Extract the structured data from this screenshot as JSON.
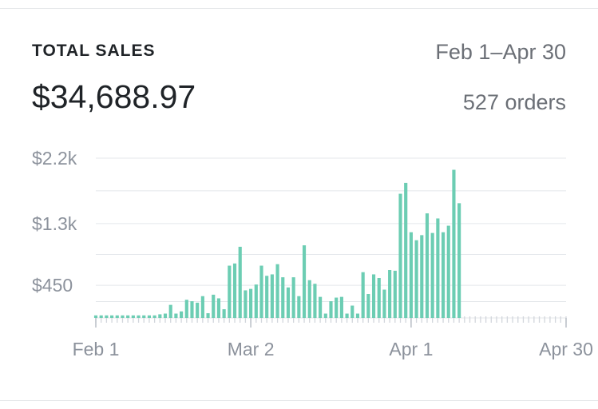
{
  "header": {
    "title": "TOTAL SALES",
    "date_range": "Feb 1–Apr 30",
    "total": "$34,688.97",
    "orders": "527 orders"
  },
  "colors": {
    "bar": "#6ccdb3",
    "placeholder_tick": "#d2d6dc",
    "grid": "#e4e7eb"
  },
  "chart_data": {
    "type": "bar",
    "title": "",
    "xlabel": "",
    "ylabel": "",
    "ylim": [
      0,
      2200
    ],
    "y_ticks": [
      {
        "value": 450,
        "label": "$450"
      },
      {
        "value": 1300,
        "label": "$1.3k"
      },
      {
        "value": 2200,
        "label": "$2.2k"
      }
    ],
    "x_start": "Feb 1",
    "x_end": "Apr 30",
    "x_ticks": [
      {
        "day_index": 0,
        "label": "Feb 1"
      },
      {
        "day_index": 29,
        "label": "Mar 2"
      },
      {
        "day_index": 59,
        "label": "Apr 1"
      },
      {
        "day_index": 88,
        "label": "Apr 30"
      }
    ],
    "grid": true,
    "legend": "none",
    "values": [
      35,
      35,
      35,
      35,
      35,
      35,
      35,
      35,
      35,
      35,
      35,
      35,
      50,
      60,
      180,
      60,
      90,
      250,
      230,
      210,
      300,
      65,
      320,
      270,
      120,
      720,
      750,
      980,
      380,
      400,
      460,
      720,
      580,
      600,
      740,
      560,
      420,
      560,
      300,
      1000,
      520,
      470,
      290,
      60,
      230,
      280,
      290,
      60,
      170,
      60,
      630,
      330,
      600,
      550,
      390,
      660,
      650,
      1710,
      1860,
      1180,
      1070,
      1140,
      1440,
      1170,
      1370,
      1180,
      1270,
      2040,
      1580
    ]
  }
}
